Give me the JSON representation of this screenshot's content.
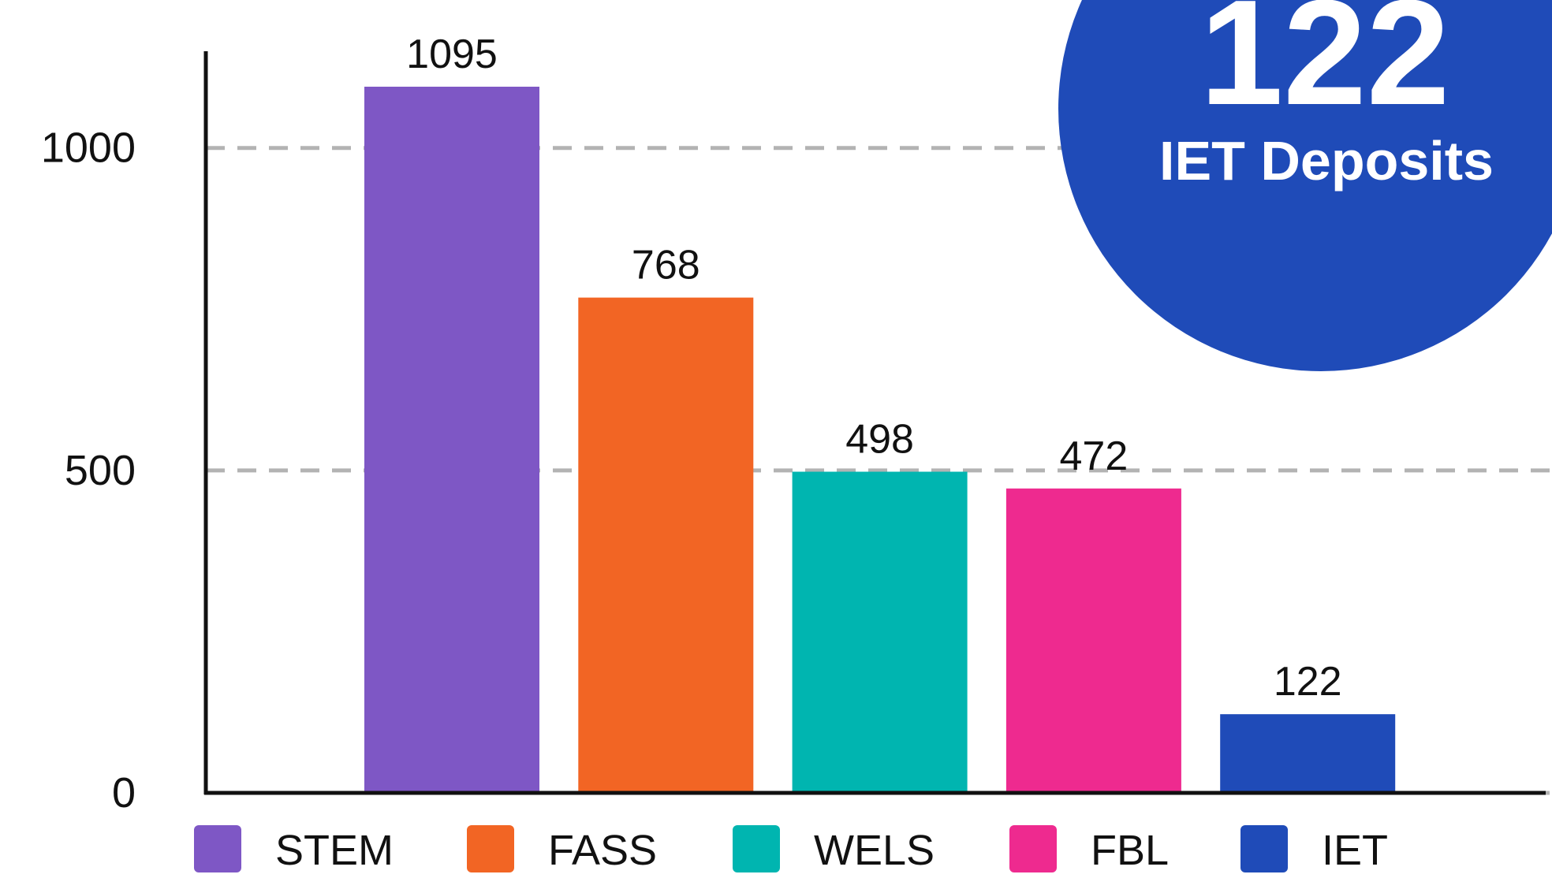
{
  "chart_data": {
    "type": "bar",
    "categories": [
      "STEM",
      "FASS",
      "WELS",
      "FBL",
      "IET"
    ],
    "values": [
      1095,
      768,
      498,
      472,
      122
    ],
    "colors": [
      "#7e57c5",
      "#f26524",
      "#00b5b0",
      "#ee2a8f",
      "#1f4bb8"
    ],
    "ylim": [
      0,
      1150
    ],
    "yticks": [
      0,
      500,
      1000
    ],
    "grid": true,
    "callout": {
      "value": 122,
      "text": "IET Deposits",
      "color": "#1f4bb8"
    }
  }
}
